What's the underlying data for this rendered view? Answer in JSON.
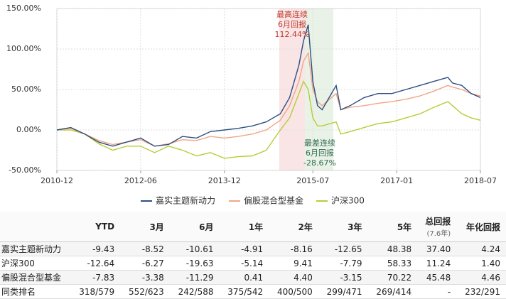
{
  "chart_data": {
    "type": "line",
    "x": [
      "2010-12",
      "2011-03",
      "2011-06",
      "2011-09",
      "2011-12",
      "2012-03",
      "2012-06",
      "2012-09",
      "2012-12",
      "2013-03",
      "2013-06",
      "2013-09",
      "2013-12",
      "2014-03",
      "2014-06",
      "2014-09",
      "2014-12",
      "2015-02",
      "2015-04",
      "2015-05",
      "2015-06",
      "2015-07",
      "2015-08",
      "2015-09",
      "2015-12",
      "2016-01",
      "2016-03",
      "2016-06",
      "2016-09",
      "2016-12",
      "2017-03",
      "2017-06",
      "2017-09",
      "2017-12",
      "2018-01",
      "2018-03",
      "2018-05",
      "2018-07"
    ],
    "xlim": [
      "2010-12",
      "2018-07"
    ],
    "xticks": [
      "2010-12",
      "2012-06",
      "2013-12",
      "2015-07",
      "2017-01",
      "2018-07"
    ],
    "ylim": [
      -50,
      150
    ],
    "yticks": [
      {
        "value": -50,
        "label": "-50.00%"
      },
      {
        "value": 0,
        "label": "0.00%"
      },
      {
        "value": 50,
        "label": "50.00%"
      },
      {
        "value": 100,
        "label": "100.00%"
      },
      {
        "value": 150,
        "label": "150.00%"
      }
    ],
    "grid": true,
    "series": [
      {
        "name": "嘉实主题新动力",
        "color": "#2d4f80",
        "values": [
          0,
          3,
          -5,
          -15,
          -20,
          -15,
          -10,
          -20,
          -18,
          -8,
          -10,
          -2,
          0,
          2,
          5,
          10,
          20,
          40,
          80,
          110,
          130,
          60,
          30,
          25,
          55,
          25,
          30,
          40,
          45,
          45,
          50,
          55,
          60,
          65,
          58,
          55,
          45,
          40
        ]
      },
      {
        "name": "偏股混合型基金",
        "color": "#f2a585",
        "values": [
          0,
          2,
          -5,
          -13,
          -18,
          -15,
          -12,
          -20,
          -17,
          -12,
          -13,
          -8,
          -10,
          -8,
          -5,
          0,
          12,
          30,
          60,
          85,
          95,
          50,
          35,
          30,
          45,
          25,
          28,
          30,
          33,
          35,
          38,
          42,
          48,
          55,
          53,
          50,
          45,
          42
        ]
      },
      {
        "name": "沪深300",
        "color": "#b8cc35",
        "values": [
          0,
          0,
          -5,
          -17,
          -25,
          -20,
          -20,
          -28,
          -20,
          -25,
          -32,
          -28,
          -35,
          -33,
          -32,
          -25,
          0,
          15,
          45,
          60,
          50,
          15,
          5,
          5,
          10,
          -5,
          -2,
          3,
          8,
          10,
          15,
          20,
          28,
          35,
          30,
          20,
          15,
          12
        ]
      }
    ],
    "annotations": [
      {
        "lines": [
          "最高连续",
          "6月回报",
          "112.44%"
        ],
        "color": "#c0392b"
      },
      {
        "lines": [
          "最差连续",
          "6月回报",
          "-28.67%"
        ],
        "color": "#2e6b4f"
      }
    ]
  },
  "table": {
    "columns": [
      "YTD",
      "3月",
      "6月",
      "1年",
      "2年",
      "3年",
      "5年",
      "总回报",
      "年化回报"
    ],
    "column_note": "(7.6年)",
    "rows": [
      [
        "嘉实主题新动力",
        "-9.43",
        "-8.52",
        "-10.61",
        "-4.91",
        "-8.16",
        "-12.65",
        "48.38",
        "37.40",
        "4.24"
      ],
      [
        "沪深300",
        "-12.64",
        "-6.27",
        "-19.63",
        "-5.14",
        "9.41",
        "-7.79",
        "58.33",
        "11.24",
        "1.40"
      ],
      [
        "偏股混合型基金",
        "-7.83",
        "-3.38",
        "-11.29",
        "0.41",
        "4.40",
        "-3.15",
        "70.22",
        "45.48",
        "4.46"
      ],
      [
        "同类排名",
        "318/579",
        "552/623",
        "242/588",
        "375/542",
        "400/500",
        "299/471",
        "269/414",
        "-",
        "232/291"
      ]
    ]
  }
}
